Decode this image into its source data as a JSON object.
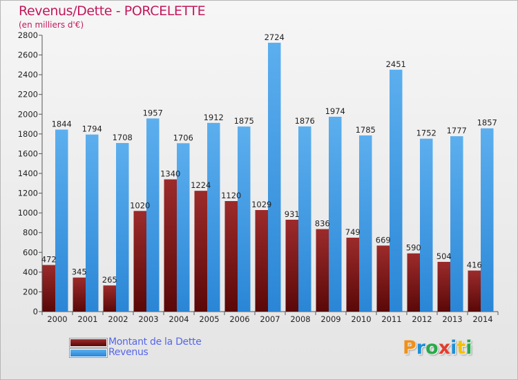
{
  "colors": {
    "title": "#c2185b",
    "dette": "#7a1212",
    "dette_light": "#9c2b2b",
    "revenus": "#2e8ee0",
    "revenus_light": "#5cafee",
    "legend_text": "#5566e8"
  },
  "logo": {
    "letters": [
      "P",
      "r",
      "o",
      "x",
      "i",
      "t",
      "i"
    ],
    "colors": [
      "#f29018",
      "#1e8fd8",
      "#27aa4a",
      "#e53c2e",
      "#1e8fd8",
      "#f5c000",
      "#27aa4a"
    ]
  },
  "chart_data": {
    "type": "bar",
    "title": "Revenus/Dette - PORCELETTE",
    "subtitle": "(en milliers d'€)",
    "xlabel": "",
    "ylabel": "",
    "ylim": [
      0,
      2800
    ],
    "yticks": [
      0,
      200,
      400,
      600,
      800,
      1000,
      1200,
      1400,
      1600,
      1800,
      2000,
      2200,
      2400,
      2600,
      2800
    ],
    "categories": [
      "2000",
      "2001",
      "2002",
      "2003",
      "2004",
      "2005",
      "2006",
      "2007",
      "2008",
      "2009",
      "2010",
      "2011",
      "2012",
      "2013",
      "2014"
    ],
    "series": [
      {
        "name": "Montant de la Dette",
        "values": [
          472,
          345,
          265,
          1020,
          1340,
          1224,
          1120,
          1029,
          931,
          836,
          749,
          669,
          590,
          504,
          416
        ],
        "labels": [
          "472",
          "345",
          "265",
          "1020",
          "1340",
          "1224",
          "1120",
          "1029",
          "931",
          "836",
          "749",
          "669",
          "590",
          "504",
          "416"
        ]
      },
      {
        "name": "Revenus",
        "values": [
          1844,
          1794,
          1708,
          1957,
          1706,
          1912,
          1875,
          2724,
          1876,
          1974,
          1785,
          2451,
          1752,
          1777,
          1857
        ],
        "labels": [
          "1844",
          "1794",
          "1708",
          "1957",
          "1706",
          "1912",
          "1875",
          "2724",
          "1876",
          "1974",
          "1785",
          "2451",
          "1752",
          "1777",
          "1857"
        ]
      }
    ],
    "grid": false,
    "legend_position": "bottom-left"
  }
}
